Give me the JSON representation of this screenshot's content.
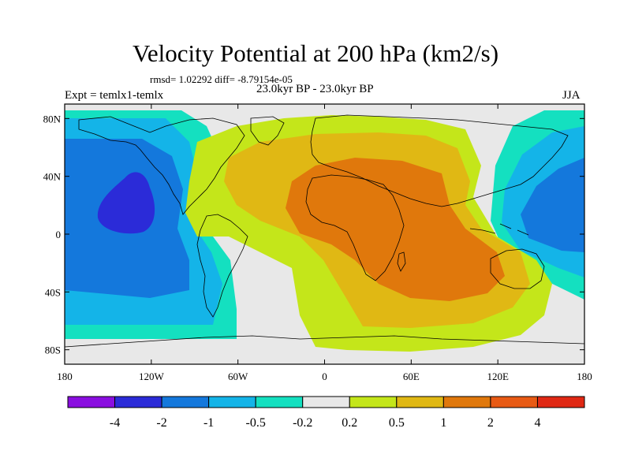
{
  "title": "Velocity Potential at 200 hPa (km2/s)",
  "stats": "rmsd= 1.02292 diff= -8.79154e-05",
  "period": "23.0kyr BP - 23.0kyr BP",
  "expt": "Expt = temlx1-temlx",
  "season": "JJA",
  "map": {
    "lon_range": [
      -180,
      180
    ],
    "lat_range": [
      -90,
      90
    ],
    "x_ticks": [
      {
        "value": -180,
        "label": "180"
      },
      {
        "value": -120,
        "label": "120W"
      },
      {
        "value": -60,
        "label": "60W"
      },
      {
        "value": 0,
        "label": "0"
      },
      {
        "value": 60,
        "label": "60E"
      },
      {
        "value": 120,
        "label": "120E"
      },
      {
        "value": 180,
        "label": "180"
      }
    ],
    "y_ticks": [
      {
        "value": 80,
        "label": "80N"
      },
      {
        "value": 40,
        "label": "40N"
      },
      {
        "value": 0,
        "label": "0"
      },
      {
        "value": -40,
        "label": "40S"
      },
      {
        "value": -80,
        "label": "80S"
      }
    ]
  },
  "colorbar": {
    "colors": [
      "#8a0ee0",
      "#2b2bd8",
      "#1478dc",
      "#14b4e8",
      "#14e0c0",
      "#e8e8e8",
      "#c4e61a",
      "#e0b814",
      "#e0780c",
      "#e85a14",
      "#e02814"
    ],
    "labels": [
      "-4",
      "-2",
      "-1",
      "-0.5",
      "-0.2",
      "0.2",
      "0.5",
      "1",
      "2",
      "4"
    ]
  }
}
